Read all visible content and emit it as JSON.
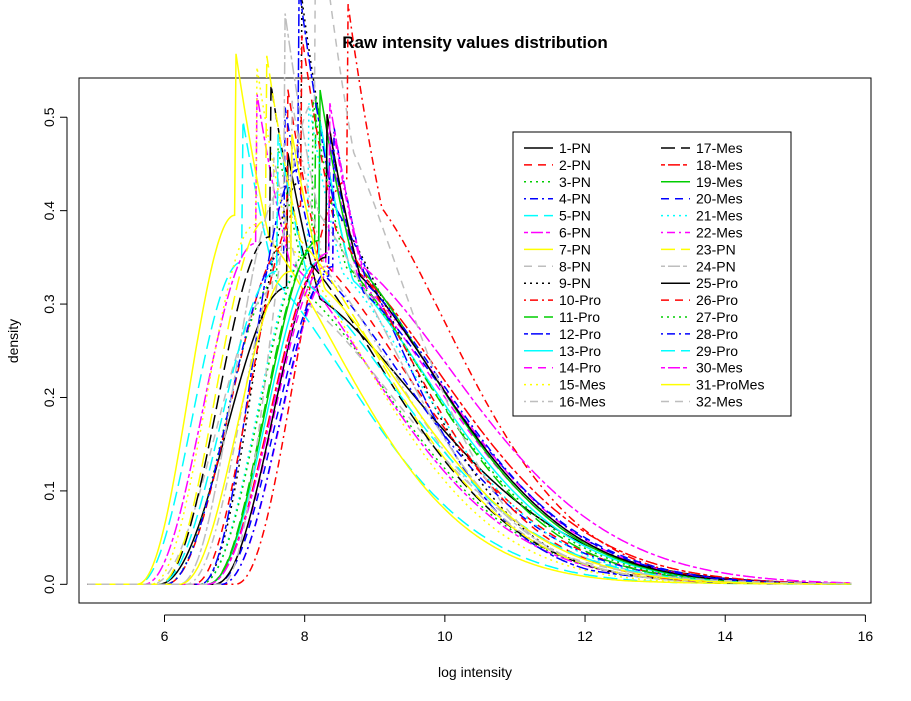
{
  "chart_data": {
    "type": "line",
    "title": "Raw intensity values distribution",
    "xlabel": "log intensity",
    "ylabel": "density",
    "xlim": [
      4.78,
      16.08
    ],
    "ylim": [
      -0.02,
      0.542
    ],
    "xticks": [
      6,
      8,
      10,
      12,
      14,
      16
    ],
    "xtick_labels": [
      "6",
      "8",
      "10",
      "12",
      "14",
      "16"
    ],
    "yticks": [
      0.0,
      0.1,
      0.2,
      0.3,
      0.4,
      0.5
    ],
    "ytick_labels": [
      "0.0",
      "0.1",
      "0.2",
      "0.3",
      "0.4",
      "0.5"
    ],
    "grid": false,
    "legend_position": "top-right",
    "legend_columns": 2,
    "series": [
      {
        "name": "1-PN",
        "color": "#000000",
        "dash": "solid",
        "peak_x": 7.75,
        "peak_y": 0.318,
        "start_x": 5.9,
        "skew": 1.4
      },
      {
        "name": "2-PN",
        "color": "#FF0000",
        "dash": "dashed",
        "peak_x": 7.75,
        "peak_y": 0.365,
        "start_x": 6.0,
        "skew": 1.35
      },
      {
        "name": "3-PN",
        "color": "#00CD00",
        "dash": "dotted",
        "peak_x": 7.6,
        "peak_y": 0.325,
        "start_x": 6.0,
        "skew": 1.4
      },
      {
        "name": "4-PN",
        "color": "#0000FF",
        "dash": "dotdash",
        "peak_x": 7.7,
        "peak_y": 0.355,
        "start_x": 6.0,
        "skew": 1.4
      },
      {
        "name": "5-PN",
        "color": "#00FFFF",
        "dash": "longdash",
        "peak_x": 7.1,
        "peak_y": 0.345,
        "start_x": 5.6,
        "skew": 1.45
      },
      {
        "name": "6-PN",
        "color": "#FF00FF",
        "dash": "twodash",
        "peak_x": 7.3,
        "peak_y": 0.365,
        "start_x": 5.7,
        "skew": 1.45
      },
      {
        "name": "7-PN",
        "color": "#FFFF00",
        "dash": "solid",
        "peak_x": 7.0,
        "peak_y": 0.395,
        "start_x": 5.6,
        "skew": 1.5
      },
      {
        "name": "8-PN",
        "color": "#BEBEBE",
        "dash": "dashed",
        "peak_x": 7.55,
        "peak_y": 0.315,
        "start_x": 5.8,
        "skew": 1.4
      },
      {
        "name": "9-PN",
        "color": "#000000",
        "dash": "dotted",
        "peak_x": 7.95,
        "peak_y": 0.432,
        "start_x": 6.5,
        "skew": 1.35
      },
      {
        "name": "10-Pro",
        "color": "#FF0000",
        "dash": "dotdash",
        "peak_x": 8.6,
        "peak_y": 0.432,
        "start_x": 7.0,
        "skew": 1.3
      },
      {
        "name": "11-Pro",
        "color": "#00CD00",
        "dash": "longdash",
        "peak_x": 8.15,
        "peak_y": 0.36,
        "start_x": 6.6,
        "skew": 1.4
      },
      {
        "name": "12-Pro",
        "color": "#0000FF",
        "dash": "twodash",
        "peak_x": 7.9,
        "peak_y": 0.444,
        "start_x": 6.5,
        "skew": 1.35
      },
      {
        "name": "13-Pro",
        "color": "#00FFFF",
        "dash": "solid",
        "peak_x": 8.2,
        "peak_y": 0.345,
        "start_x": 6.6,
        "skew": 1.4
      },
      {
        "name": "14-Pro",
        "color": "#FF00FF",
        "dash": "dashed",
        "peak_x": 8.3,
        "peak_y": 0.34,
        "start_x": 6.7,
        "skew": 1.4
      },
      {
        "name": "15-Mes",
        "color": "#FFFF00",
        "dash": "dotted",
        "peak_x": 7.3,
        "peak_y": 0.385,
        "start_x": 5.8,
        "skew": 1.45
      },
      {
        "name": "16-Mes",
        "color": "#BEBEBE",
        "dash": "dotdash",
        "peak_x": 7.8,
        "peak_y": 0.36,
        "start_x": 6.3,
        "skew": 1.4
      },
      {
        "name": "17-Mes",
        "color": "#000000",
        "dash": "longdash",
        "peak_x": 7.5,
        "peak_y": 0.372,
        "start_x": 5.9,
        "skew": 1.4
      },
      {
        "name": "18-Mes",
        "color": "#FF0000",
        "dash": "twodash",
        "peak_x": 8.3,
        "peak_y": 0.35,
        "start_x": 6.6,
        "skew": 1.4
      },
      {
        "name": "19-Mes",
        "color": "#00CD00",
        "dash": "solid",
        "peak_x": 8.2,
        "peak_y": 0.368,
        "start_x": 6.6,
        "skew": 1.4
      },
      {
        "name": "20-Mes",
        "color": "#0000FF",
        "dash": "dashed",
        "peak_x": 8.35,
        "peak_y": 0.33,
        "start_x": 6.7,
        "skew": 1.4
      },
      {
        "name": "21-Mes",
        "color": "#00FFFF",
        "dash": "dotted",
        "peak_x": 8.05,
        "peak_y": 0.355,
        "start_x": 6.5,
        "skew": 1.4
      },
      {
        "name": "22-Mes",
        "color": "#FF00FF",
        "dash": "dotdash",
        "peak_x": 8.4,
        "peak_y": 0.335,
        "start_x": 6.8,
        "skew": 1.4
      },
      {
        "name": "23-PN",
        "color": "#FFFF00",
        "dash": "longdash",
        "peak_x": 7.45,
        "peak_y": 0.39,
        "start_x": 5.9,
        "skew": 1.45
      },
      {
        "name": "24-PN",
        "color": "#BEBEBE",
        "dash": "twodash",
        "peak_x": 7.7,
        "peak_y": 0.425,
        "start_x": 6.2,
        "skew": 1.4
      },
      {
        "name": "25-Pro",
        "color": "#000000",
        "dash": "solid",
        "peak_x": 8.3,
        "peak_y": 0.35,
        "start_x": 6.7,
        "skew": 1.4
      },
      {
        "name": "26-Pro",
        "color": "#FF0000",
        "dash": "dashed",
        "peak_x": 7.95,
        "peak_y": 0.405,
        "start_x": 6.4,
        "skew": 1.35
      },
      {
        "name": "27-Pro",
        "color": "#00CD00",
        "dash": "dotted",
        "peak_x": 8.1,
        "peak_y": 0.36,
        "start_x": 6.5,
        "skew": 1.4
      },
      {
        "name": "28-Pro",
        "color": "#0000FF",
        "dash": "dotdash",
        "peak_x": 8.4,
        "peak_y": 0.34,
        "start_x": 6.8,
        "skew": 1.4
      },
      {
        "name": "29-Pro",
        "color": "#00FFFF",
        "dash": "longdash",
        "peak_x": 7.6,
        "peak_y": 0.335,
        "start_x": 5.9,
        "skew": 1.4
      },
      {
        "name": "30-Mes",
        "color": "#FF00FF",
        "dash": "twodash",
        "peak_x": 8.35,
        "peak_y": 0.355,
        "start_x": 6.6,
        "skew": 1.45
      },
      {
        "name": "31-ProMes",
        "color": "#FFFF00",
        "dash": "solid",
        "peak_x": 7.8,
        "peak_y": 0.335,
        "start_x": 6.2,
        "skew": 1.4
      },
      {
        "name": "32-Mes",
        "color": "#BEBEBE",
        "dash": "dashed",
        "peak_x": 8.15,
        "peak_y": 0.518,
        "start_x": 6.8,
        "skew": 1.3
      }
    ]
  }
}
